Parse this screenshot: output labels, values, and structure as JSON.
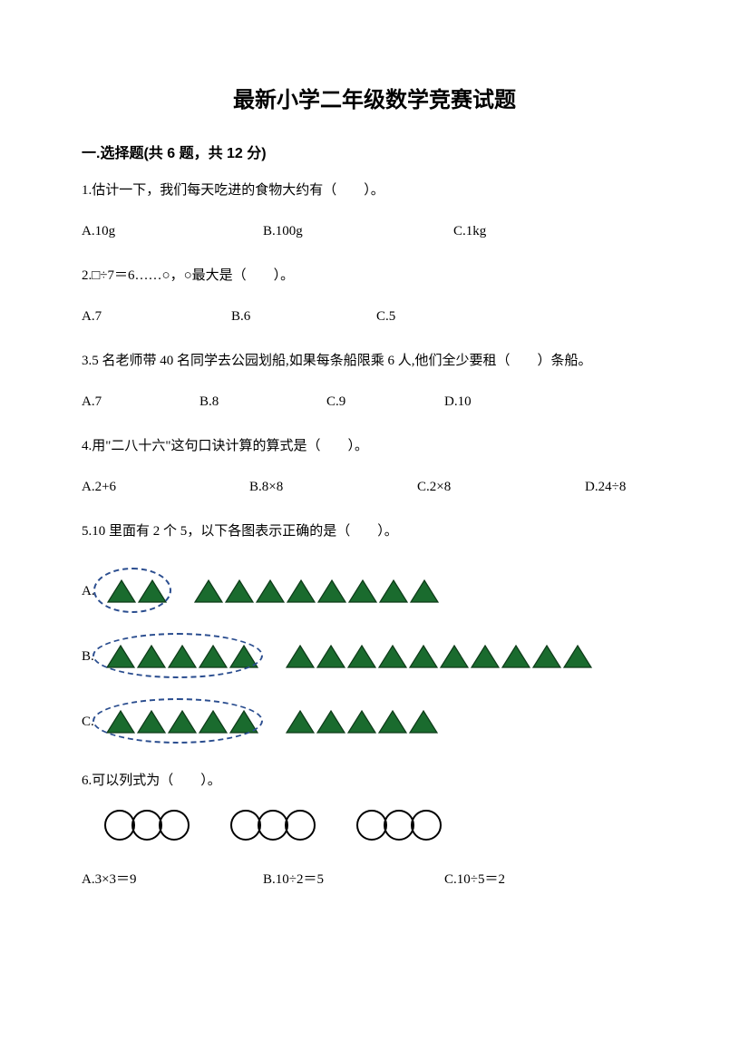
{
  "title": "最新小学二年级数学竞赛试题",
  "section1": {
    "header": "一.选择题(共 6 题，共 12 分)",
    "q1": {
      "text": "1.估计一下，我们每天吃进的食物大约有（　　）。",
      "a": "A.10g",
      "b": "B.100g",
      "c": "C.1kg"
    },
    "q2": {
      "text": "2.□÷7＝6……○，○最大是（　　）。",
      "a": "A.7",
      "b": "B.6",
      "c": "C.5"
    },
    "q3": {
      "text": "3.5 名老师带 40 名同学去公园划船,如果每条船限乘 6 人,他们全少要租（　　）条船。",
      "a": "A.7",
      "b": "B.8",
      "c": "C.9",
      "d": "D.10"
    },
    "q4": {
      "text": "4.用\"二八十六\"这句口诀计算的算式是（　　）。",
      "a": "A.2+6",
      "b": "B.8×8",
      "c": "C.2×8",
      "d": "D.24÷8"
    },
    "q5": {
      "text": "5.10 里面有 2 个 5，以下各图表示正确的是（　　）。",
      "labelA": "A.",
      "labelB": "B.",
      "labelC": "C.",
      "optA": {
        "group1": 2,
        "group2": 8,
        "circle_on_group1": true
      },
      "optB": {
        "group1": 5,
        "group2": 10,
        "circle_on_group1": true
      },
      "optC": {
        "group1": 5,
        "group2": 5,
        "circle_on_group1": true
      }
    },
    "q6": {
      "text": "6.可以列式为（　　）。",
      "groups": 3,
      "per_group": 3,
      "a": "A.3×3＝9",
      "b": "B.10÷2＝5",
      "c": "C.10÷5＝2"
    }
  },
  "style": {
    "triangle_fill": "#1a6b2e",
    "triangle_stroke": "#0d3a18",
    "triangle_width": 34,
    "triangle_height": 28,
    "dashed_border_color": "#2a4d8f",
    "circle_stroke": "#000000",
    "text_color": "#000000",
    "background": "#ffffff"
  }
}
